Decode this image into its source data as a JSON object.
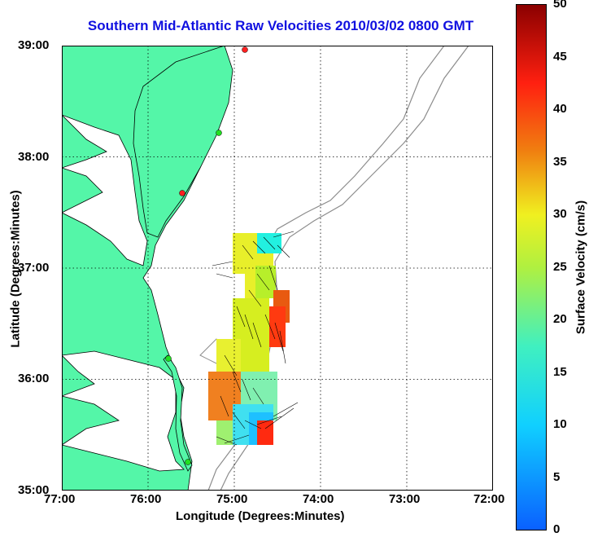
{
  "title": "Southern Mid-Atlantic Raw Velocities 2010/03/02 0800 GMT",
  "xlabel": "Longitude (Degrees:Minutes)",
  "ylabel": "Latitude (Degrees:Minutes)",
  "colorbar_label": "Surface Velocity (cm/s)",
  "colorbar_ticks": [
    "0",
    "5",
    "10",
    "15",
    "20",
    "25",
    "30",
    "35",
    "40",
    "45",
    "50"
  ],
  "colorbar_range": [
    0,
    50
  ],
  "x_ticks": [
    "77:00",
    "76:00",
    "75:00",
    "74:00",
    "73:00",
    "72:00"
  ],
  "y_ticks": [
    "39:00",
    "38:00",
    "37:00",
    "36:00",
    "35:00"
  ],
  "lon_range": [
    -77,
    -72
  ],
  "lat_range": [
    35,
    39
  ],
  "colors": {
    "land": "#54f6a8",
    "coast": "#000000",
    "title": "#1010e0",
    "bathymetry": "#8c8c8c",
    "grid": "#000000"
  },
  "map_features": [
    "land",
    "coastline",
    "bathymetry-contours",
    "velocity-field",
    "hf-radar-sites",
    "dotted-grid"
  ]
}
